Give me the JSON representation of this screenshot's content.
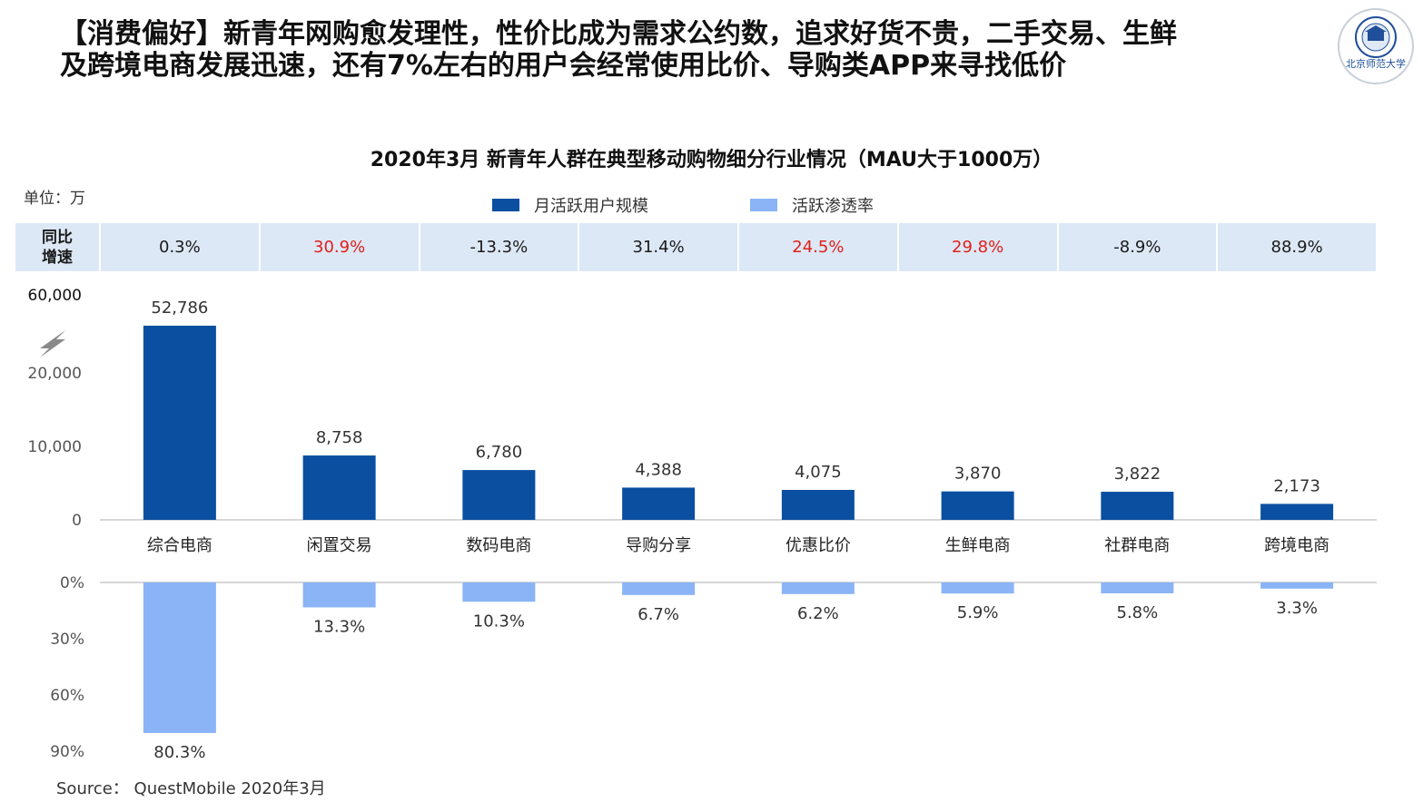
{
  "headline": "【消费偏好】新青年网购愈发理性，性价比成为需求公约数，追求好货不贵，二手交易、生鲜及跨境电商发展迅速，还有7%左右的用户会经常使用比价、导购类APP来寻找低价",
  "logo": {
    "text": "北京师范大学"
  },
  "unit_label": "单位：万",
  "colors": {
    "mau_bar": "#0a4fa0",
    "penetration_bar": "#8ab4f6",
    "growth_bg": "#dde8f6",
    "growth_red": "#e0201a"
  },
  "growth": {
    "label_line1": "同比",
    "label_line2": "增速",
    "values": [
      "0.3%",
      "30.9%",
      "-13.3%",
      "31.4%",
      "24.5%",
      "29.8%",
      "-8.9%",
      "88.9%"
    ],
    "highlight": [
      false,
      true,
      false,
      false,
      true,
      true,
      false,
      false
    ]
  },
  "source": "Source： QuestMobile 2020年3月",
  "chart_data": {
    "type": "bar",
    "title": "2020年3月 新青年人群在典型移动购物细分行业情况（MAU大于1000万）",
    "categories": [
      "综合电商",
      "闲置交易",
      "数码电商",
      "导购分享",
      "优惠比价",
      "生鲜电商",
      "社群电商",
      "跨境电商"
    ],
    "series": [
      {
        "name": "月活跃用户规模",
        "unit": "万",
        "values": [
          52786,
          8758,
          6780,
          4388,
          4075,
          3870,
          3822,
          2173
        ],
        "labels": [
          "52,786",
          "8,758",
          "6,780",
          "4,388",
          "4,075",
          "3,870",
          "3,822",
          "2,173"
        ]
      },
      {
        "name": "活跃渗透率",
        "unit": "%",
        "values": [
          80.3,
          13.3,
          10.3,
          6.7,
          6.2,
          5.9,
          5.8,
          3.3
        ],
        "labels": [
          "80.3%",
          "13.3%",
          "10.3%",
          "6.7%",
          "6.2%",
          "5.9%",
          "5.8%",
          "3.3%"
        ]
      }
    ],
    "mau_axis": {
      "ticks": [
        0,
        10000,
        20000,
        60000
      ],
      "tick_labels": [
        "0",
        "10,000",
        "20,000",
        "60,000"
      ],
      "break_between": [
        20000,
        60000
      ]
    },
    "penetration_axis": {
      "ticks": [
        0,
        30,
        60,
        90
      ],
      "tick_labels": [
        "0%",
        "30%",
        "60%",
        "90%"
      ],
      "direction": "downward"
    }
  }
}
